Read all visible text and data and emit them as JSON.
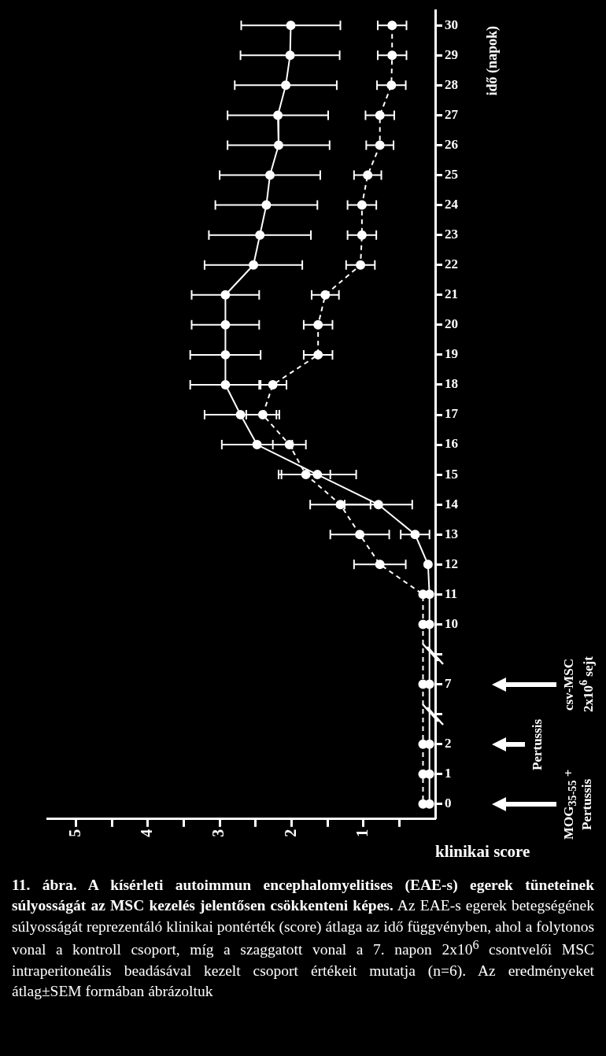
{
  "chart_data": {
    "type": "line",
    "title": "11. ábra. A kísérleti autoimmun encephalomyelitises (EAE-s) egerek tüneteinek súlyosságát az MSC kezelés jelentősen csökkenteni képes.",
    "subtitle": "Az EAE-s egerek betegségének súlyosságát reprezentáló klinikai pontérték (score) átlaga az idő függvényben, ahol a folytonos vonal a kontroll csoport, míg a szaggatott vonal a 7. napon 2x10$^{6}$ csontvelői MSC intraperitoneális beadásával kezelt csoport értékeit mutatja (n=6). Az eredményeket átlag±SEM formában ábrázoltuk",
    "xlabel": "klinikai score",
    "ylabel": "idő (napok)",
    "orientation": "horizontal",
    "categories": [
      "30",
      "29",
      "28",
      "27",
      "26",
      "25",
      "24",
      "23",
      "22",
      "21",
      "20",
      "19",
      "18",
      "17",
      "16",
      "15",
      "14",
      "13",
      "12",
      "11",
      "10",
      null,
      "7",
      null,
      "2",
      "1",
      "0"
    ],
    "series": [
      {
        "color": "#ffffff",
        "line_style": "solid",
        "values": [
          2.01,
          2.02,
          2.08,
          2.19,
          2.18,
          2.3,
          2.35,
          2.44,
          2.53,
          2.92,
          2.92,
          2.92,
          2.92,
          2.71,
          2.48,
          1.64,
          0.79,
          0.28,
          0.1,
          0.08,
          0.08,
          null,
          0.08,
          null,
          0.08,
          0.08,
          0.08
        ],
        "errors": [
          0.69,
          0.69,
          0.71,
          0.7,
          0.71,
          0.7,
          0.71,
          0.71,
          0.68,
          0.47,
          0.47,
          0.49,
          0.49,
          0.5,
          0.49,
          0.54,
          0.47,
          0.2,
          null,
          null,
          null,
          null,
          null,
          null,
          null,
          null,
          null
        ]
      },
      {
        "color": "#ffffff",
        "line_style": "dashed",
        "values": [
          0.6,
          0.6,
          0.61,
          0.77,
          0.77,
          0.94,
          1.02,
          1.02,
          1.04,
          1.53,
          1.63,
          1.63,
          2.26,
          2.4,
          2.03,
          1.8,
          1.32,
          1.05,
          0.77,
          0.17,
          0.17,
          null,
          0.17,
          null,
          0.17,
          0.17,
          0.17
        ],
        "errors": [
          0.2,
          0.2,
          0.2,
          0.2,
          0.19,
          0.19,
          0.2,
          0.2,
          0.2,
          0.19,
          0.2,
          0.2,
          0.19,
          0.23,
          0.23,
          0.34,
          0.42,
          0.41,
          0.36,
          null,
          null,
          null,
          null,
          null,
          null,
          null,
          null
        ]
      }
    ],
    "xlim": [
      5.4,
      0
    ],
    "xticks": [
      {
        "value": 0.5,
        "label": null
      },
      1,
      {
        "value": 1.5,
        "label": null
      },
      2,
      {
        "value": 2.5,
        "label": null
      },
      3,
      {
        "value": 3.5,
        "label": null
      },
      4,
      {
        "value": 4.5,
        "label": null
      },
      5
    ],
    "marker": "circle",
    "grid": false,
    "legend": false,
    "annotations": [
      "MOG$_{35-55}$ + Pertussis",
      "Pertussis",
      "csv-MSC 2x10$^{6}$ sejt"
    ]
  }
}
